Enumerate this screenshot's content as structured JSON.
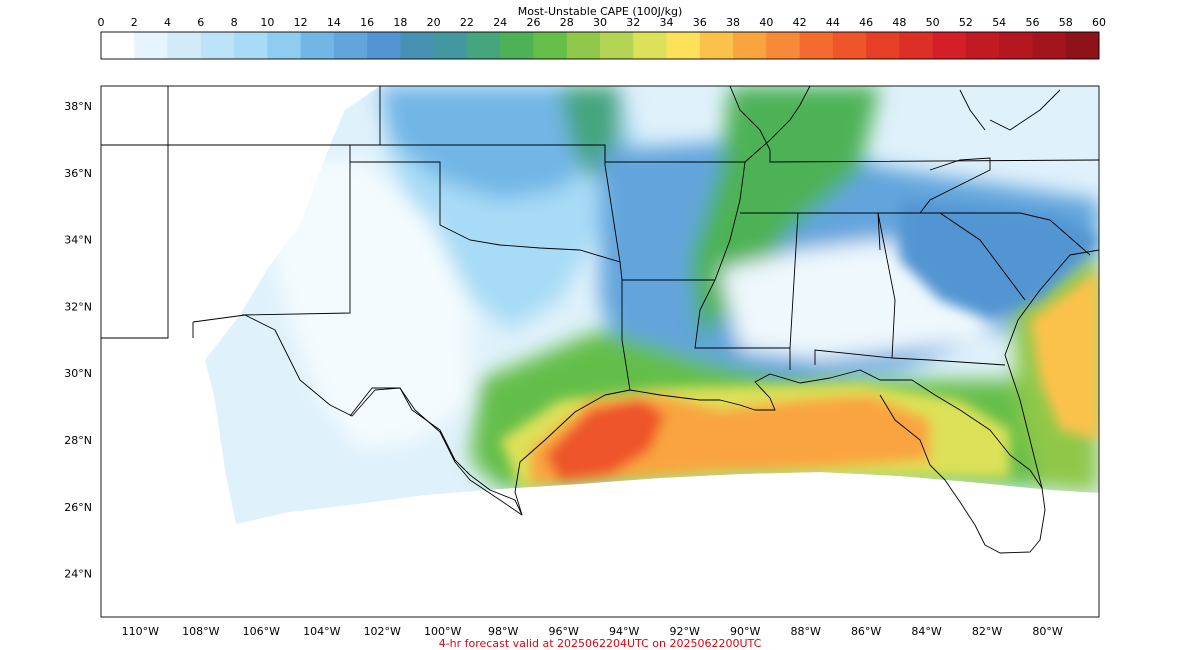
{
  "colorbar": {
    "title": "Most-Unstable CAPE (100J/kg)",
    "ticks": [
      0,
      2,
      4,
      6,
      8,
      10,
      12,
      14,
      16,
      18,
      20,
      22,
      24,
      26,
      28,
      30,
      32,
      34,
      36,
      38,
      40,
      42,
      44,
      46,
      48,
      50,
      52,
      54,
      56,
      58,
      60
    ],
    "colors": [
      "#ffffff",
      "#e6f5fd",
      "#d1ebf9",
      "#bde3f8",
      "#a7dbf6",
      "#8ecdf0",
      "#72b6e6",
      "#62a4dc",
      "#5395d2",
      "#4791b2",
      "#43979f",
      "#45a57d",
      "#4db256",
      "#64be48",
      "#8fc84a",
      "#b3d454",
      "#dde159",
      "#fde15a",
      "#fbc24b",
      "#f9a43f",
      "#f78a38",
      "#f46b2f",
      "#ee5529",
      "#e53f27",
      "#dc2f26",
      "#d41f28",
      "#c21a23",
      "#b3171f",
      "#a3151c",
      "#8e1318"
    ]
  },
  "map": {
    "lon_range": [
      -111.3,
      -78.3
    ],
    "lat_range": [
      22.7,
      38.6
    ],
    "lon_ticks": [
      -110,
      -108,
      -106,
      -104,
      -102,
      -100,
      -98,
      -96,
      -94,
      -92,
      -90,
      -88,
      -86,
      -84,
      -82,
      -80
    ],
    "lon_labels": [
      "110°W",
      "108°W",
      "106°W",
      "104°W",
      "102°W",
      "100°W",
      "98°W",
      "96°W",
      "94°W",
      "92°W",
      "90°W",
      "88°W",
      "86°W",
      "84°W",
      "82°W",
      "80°W"
    ],
    "lat_ticks": [
      24,
      26,
      28,
      30,
      32,
      34,
      36,
      38
    ],
    "lat_labels": [
      "24°N",
      "26°N",
      "28°N",
      "30°N",
      "32°N",
      "34°N",
      "36°N",
      "38°N"
    ]
  },
  "caption": {
    "text": "4-hr forecast valid at 2025062204UTC on 2025062200UTC",
    "color": "#e8000b"
  }
}
